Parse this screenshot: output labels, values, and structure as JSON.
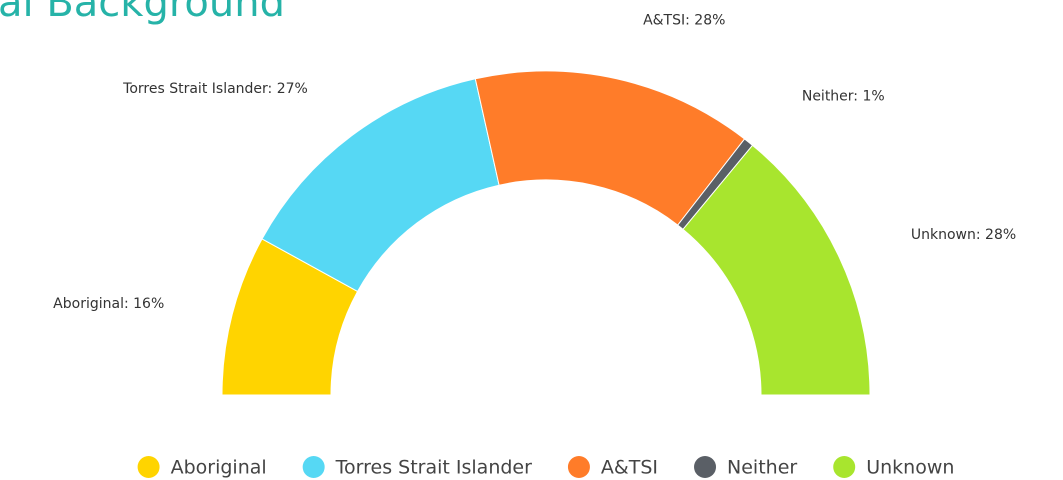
{
  "chart_data": {
    "type": "semi-donut",
    "title": "al Background",
    "categories": [
      "Aboriginal",
      "Torres Strait Islander",
      "A&TSI",
      "Neither",
      "Unknown"
    ],
    "values": [
      16,
      27,
      28,
      1,
      28
    ],
    "value_labels": [
      "Aboriginal: 16%",
      "Torres Strait Islander: 27%",
      "A&TSI: 28%",
      "Neither: 1%",
      "Unknown: 28%"
    ],
    "colors": [
      "#ffd400",
      "#56d8f4",
      "#ff7c29",
      "#5a5f66",
      "#a8e52e"
    ],
    "legend": "bottom"
  }
}
